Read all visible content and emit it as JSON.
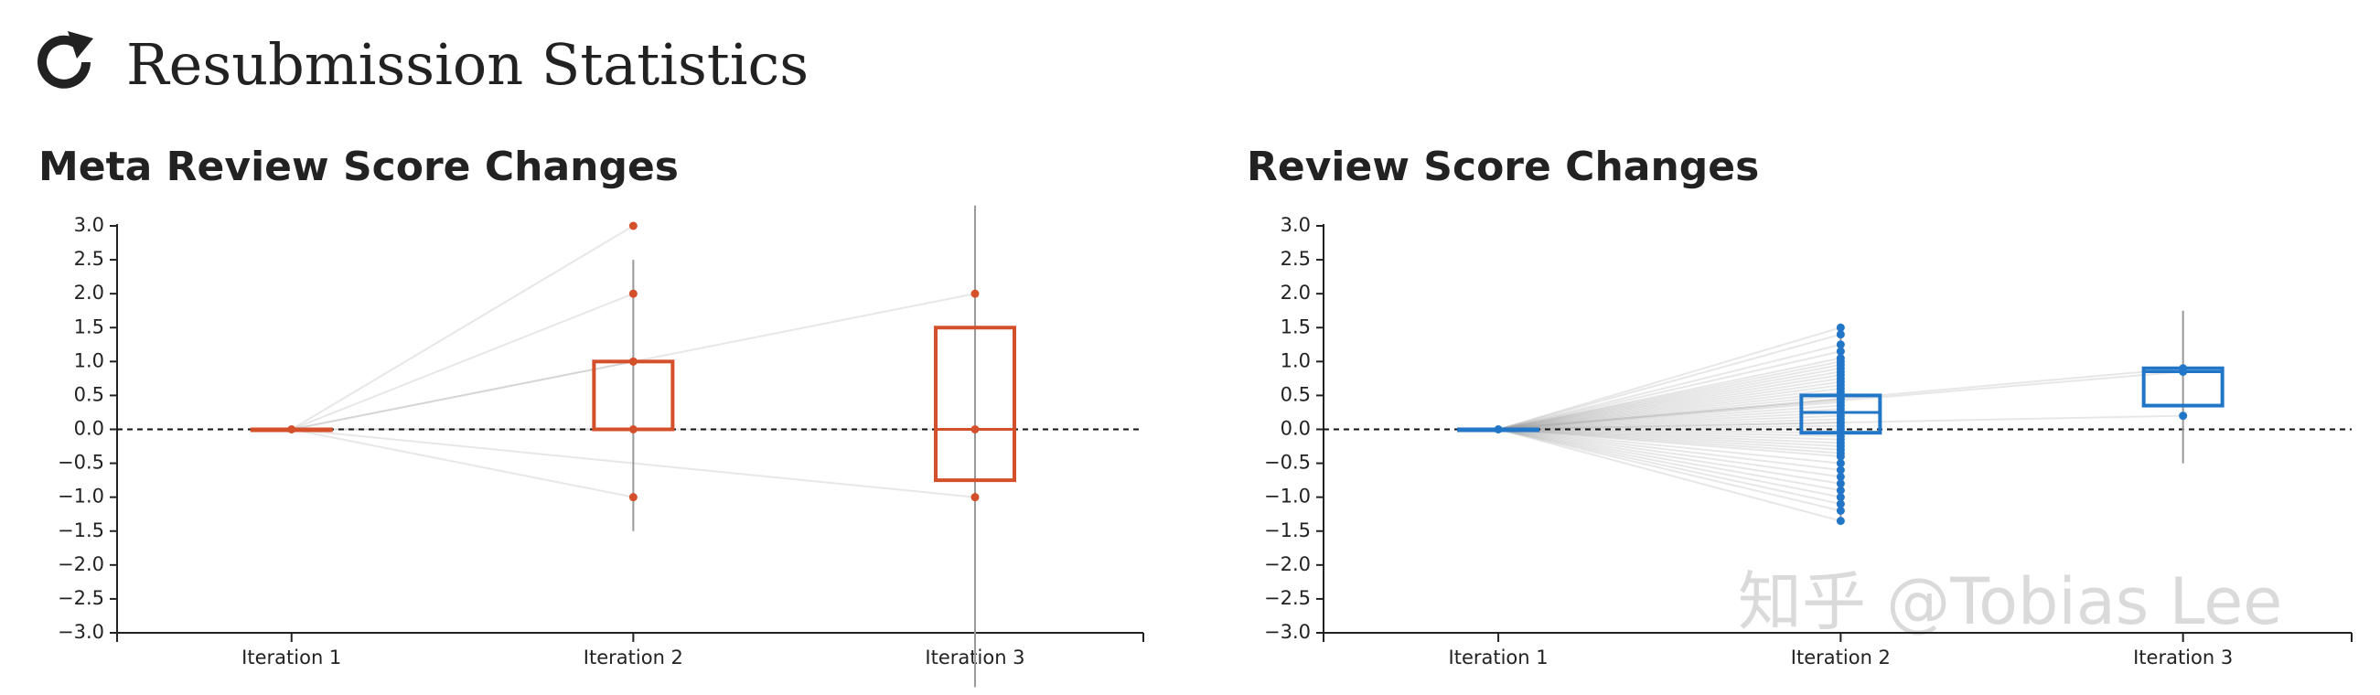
{
  "page": {
    "title": "Resubmission Statistics",
    "watermark": "知乎 @Tobias Lee"
  },
  "chart_data": [
    {
      "type": "box",
      "title": "Meta Review Score Changes",
      "color": "#d4502a",
      "categories": [
        "Iteration 1",
        "Iteration 2",
        "Iteration 3"
      ],
      "boxes": [
        {
          "whislo": 0,
          "q1": 0,
          "med": 0,
          "q3": 0,
          "whishi": 0
        },
        {
          "whislo": -1.5,
          "q1": 0,
          "med": 0,
          "q3": 1.0,
          "whishi": 2.5
        },
        {
          "whislo": -3.8,
          "q1": -0.75,
          "med": 0,
          "q3": 1.5,
          "whishi": 3.3
        }
      ],
      "points": [
        [
          0
        ],
        [
          3,
          2,
          1,
          0,
          -1
        ],
        [
          2,
          0,
          -1
        ]
      ],
      "reference_line": 0,
      "ylim": [
        -3,
        3
      ],
      "yticks": [
        {
          "value": 3,
          "label": "3.0"
        },
        {
          "value": 2.5,
          "label": "2.5"
        },
        {
          "value": 2,
          "label": "2.0"
        },
        {
          "value": 1.5,
          "label": "1.5"
        },
        {
          "value": 1,
          "label": "1.0"
        },
        {
          "value": 0.5,
          "label": "0.5"
        },
        {
          "value": 0,
          "label": "0.0"
        },
        {
          "value": -0.5,
          "label": "−0.5"
        },
        {
          "value": -1,
          "label": "−1.0"
        },
        {
          "value": -1.5,
          "label": "−1.5"
        },
        {
          "value": -2,
          "label": "−2.0"
        },
        {
          "value": -2.5,
          "label": "−2.5"
        },
        {
          "value": -3,
          "label": "−3.0"
        }
      ]
    },
    {
      "type": "box",
      "title": "Review Score Changes",
      "color": "#2176c7",
      "categories": [
        "Iteration 1",
        "Iteration 2",
        "Iteration 3"
      ],
      "boxes": [
        {
          "whislo": 0,
          "q1": 0,
          "med": 0,
          "q3": 0,
          "whishi": 0
        },
        {
          "whislo": -1.35,
          "q1": -0.05,
          "med": 0.25,
          "q3": 0.5,
          "whishi": 1.5
        },
        {
          "whislo": -0.5,
          "q1": 0.35,
          "med": 0.85,
          "q3": 0.9,
          "whishi": 1.75
        }
      ],
      "points": [
        [
          0
        ],
        [
          1.5,
          1.4,
          1.25,
          1.15,
          1.05,
          1.0,
          0.95,
          0.9,
          0.85,
          0.8,
          0.75,
          0.7,
          0.65,
          0.6,
          0.55,
          0.5,
          0.45,
          0.4,
          0.35,
          0.3,
          0.25,
          0.2,
          0.15,
          0.1,
          0.05,
          0,
          -0.05,
          -0.1,
          -0.15,
          -0.2,
          -0.25,
          -0.3,
          -0.35,
          -0.4,
          -0.5,
          -0.6,
          -0.7,
          -0.8,
          -0.9,
          -1.0,
          -1.1,
          -1.2,
          -1.35
        ],
        [
          0.9,
          0.85,
          0.2
        ]
      ],
      "reference_line": 0,
      "ylim": [
        -3,
        3
      ],
      "yticks": [
        {
          "value": 3,
          "label": "3.0"
        },
        {
          "value": 2.5,
          "label": "2.5"
        },
        {
          "value": 2,
          "label": "2.0"
        },
        {
          "value": 1.5,
          "label": "1.5"
        },
        {
          "value": 1,
          "label": "1.0"
        },
        {
          "value": 0.5,
          "label": "0.5"
        },
        {
          "value": 0,
          "label": "0.0"
        },
        {
          "value": -0.5,
          "label": "−0.5"
        },
        {
          "value": -1,
          "label": "−1.0"
        },
        {
          "value": -1.5,
          "label": "−1.5"
        },
        {
          "value": -2,
          "label": "−2.0"
        },
        {
          "value": -2.5,
          "label": "−2.5"
        },
        {
          "value": -3,
          "label": "−3.0"
        }
      ]
    }
  ]
}
